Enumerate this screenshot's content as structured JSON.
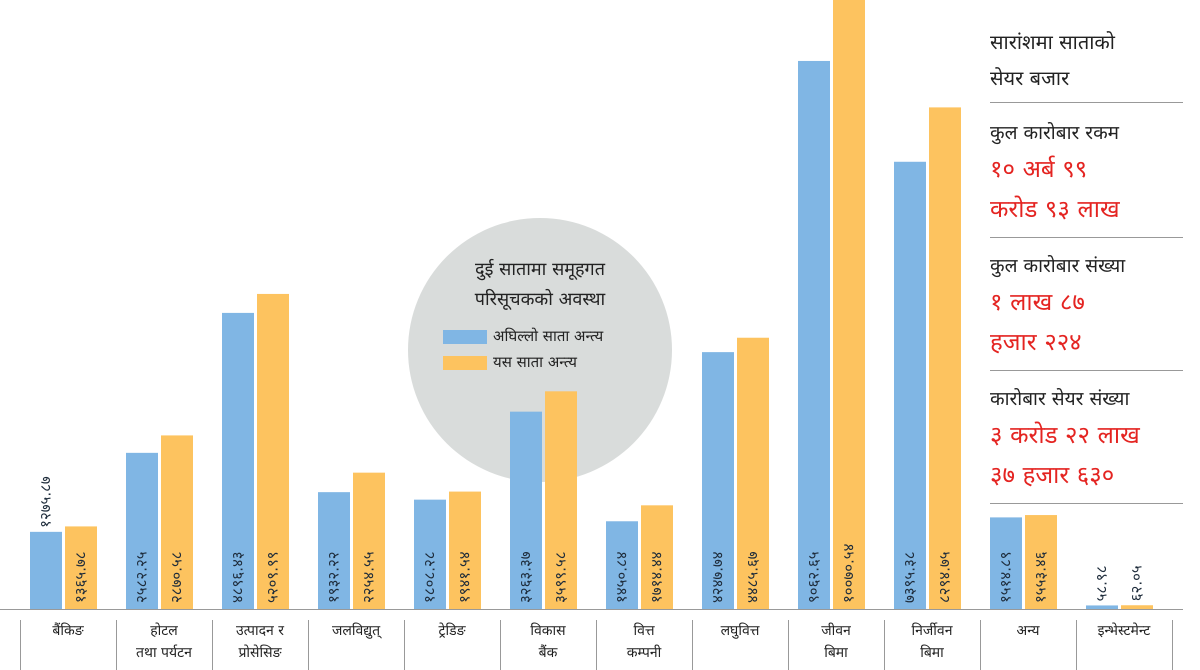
{
  "chart_data": {
    "type": "bar",
    "title": "दुई सातामा समूहगत\nपरिसूचकको अवस्था",
    "categories": [
      "बैंकिङ",
      "होटल\nतथा पर्यटन",
      "उत्पादन र\nप्रोसेसिङ",
      "जलविद्युत्",
      "ट्रेडिङ",
      "विकास\nबैंक",
      "वित्त\nकम्पनी",
      "लघुवित्त",
      "जीवन\nबिमा",
      "निर्जीवन\nबिमा",
      "अन्य",
      "इन्भेस्टमेन्ट"
    ],
    "series": [
      {
        "name": "अघिल्लो साता अन्त्य",
        "color": "#80b6e4",
        "values": [
          1275.87,
          2582.25,
          4896.43,
          1932.22,
          1808.28,
          3263.37,
          1450.84,
          4247.74,
          9062.65,
          7395.38,
          1514.89,
          58.98
        ],
        "value_labels": [
          "१२७५.८७",
          "२५८२.२५",
          "४८९६.४३",
          "१९३२.२२",
          "१८०८.२८",
          "३२६३.३७",
          "१४५०.८४",
          "४२४७.७४",
          "९०६२.६५",
          "७३९५.३८",
          "१५१४.८९",
          "५८.९८"
        ]
      },
      {
        "name": "यस साता अन्त्य",
        "color": "#fdc35f",
        "values": [
          1365.78,
          2870.58,
          5209.99,
          2254.55,
          1941.54,
          3599.58,
          1714.44,
          4485.67,
          10070.54,
          8294.75,
          1553.46,
          62.05
        ],
        "value_labels": [
          "१३६५.७८",
          "२८७०.५८",
          "५२०९.९९",
          "२२५४.५५",
          "१९४१.५४",
          "३५९९.५८",
          "१७१४.४४",
          "४४८५.६७",
          "१००७०.५४",
          "८२९४.७५",
          "१५५३.४६",
          "६२.०५"
        ]
      }
    ]
  },
  "summary": {
    "title": "सारांशमा साताको\nसेयर बजार",
    "items": [
      {
        "label": "कुल कारोबार रकम",
        "value": "१० अर्ब ९९\nकरोड ९३ लाख"
      },
      {
        "label": "कुल कारोबार संख्या",
        "value": "१ लाख ८७\nहजार २२४"
      },
      {
        "label": "कारोबार सेयर संख्या",
        "value": "३ करोड २२ लाख\n३७ हजार ६३०"
      }
    ]
  }
}
